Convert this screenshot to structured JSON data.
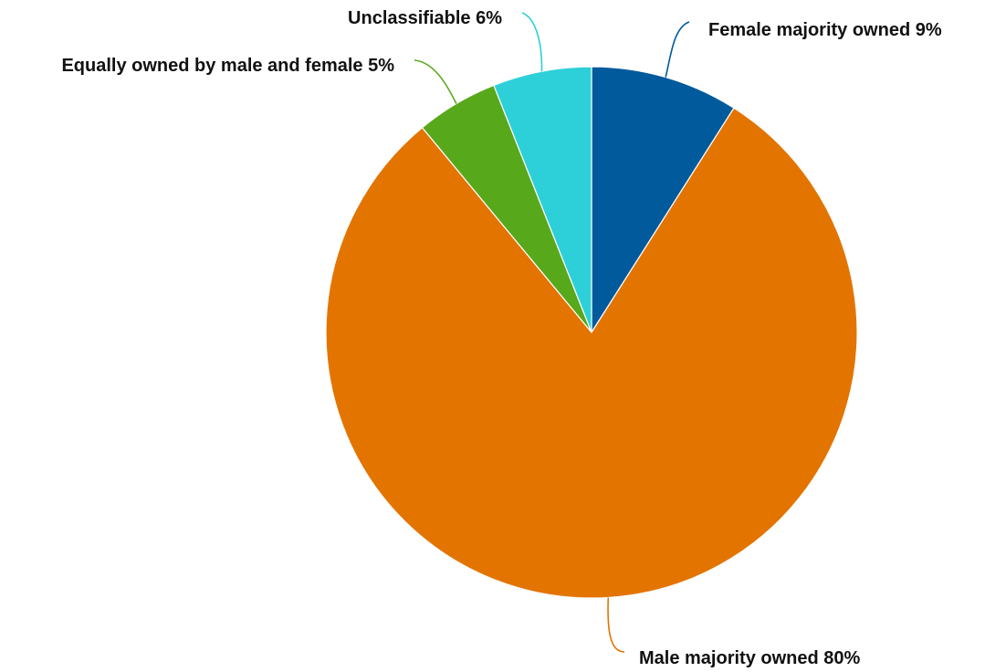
{
  "chart_data": {
    "type": "pie",
    "title": "",
    "slices": [
      {
        "label": "Female majority owned",
        "value": 9,
        "display": "Female majority owned 9%",
        "color": "#005A9C"
      },
      {
        "label": "Male majority owned",
        "value": 80,
        "display": "Male majority owned 80%",
        "color": "#E37400"
      },
      {
        "label": "Equally owned by male and female",
        "value": 5,
        "display": "Equally owned by male and female 5%",
        "color": "#58A81C"
      },
      {
        "label": "Unclassifiable",
        "value": 6,
        "display": "Unclassifiable 6%",
        "color": "#2DD0D8"
      }
    ],
    "start": "12 o'clock",
    "direction": "clockwise"
  }
}
